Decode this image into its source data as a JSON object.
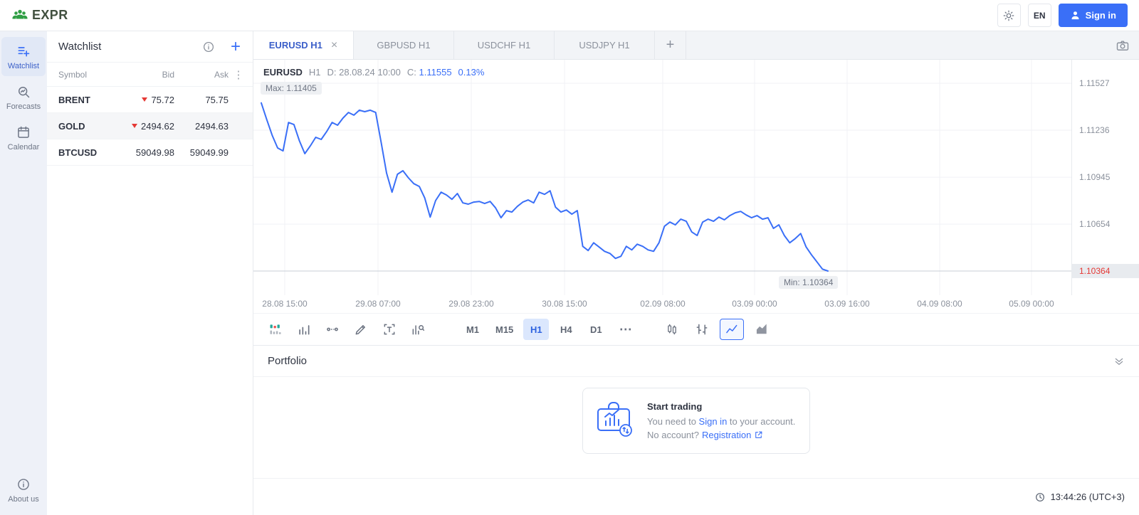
{
  "colors": {
    "accent": "#3A6FF7",
    "red": "#E53935",
    "logo_green": "#2F9E44"
  },
  "glyphs": {
    "close": "×",
    "plus": "+",
    "kebab": "⋮",
    "more": "⋯"
  },
  "header": {
    "logo_text": "EXPR",
    "language": "EN",
    "sign_in": "Sign in"
  },
  "sidebar": {
    "items": [
      {
        "label": "Watchlist",
        "active": true
      },
      {
        "label": "Forecasts",
        "active": false
      },
      {
        "label": "Calendar",
        "active": false
      }
    ],
    "about": "About us"
  },
  "watchlist": {
    "title": "Watchlist",
    "columns": {
      "symbol": "Symbol",
      "bid": "Bid",
      "ask": "Ask"
    },
    "rows": [
      {
        "symbol": "BRENT",
        "bid": "75.72",
        "ask": "75.75",
        "bid_direction": "down",
        "highlighted": false
      },
      {
        "symbol": "GOLD",
        "bid": "2494.62",
        "ask": "2494.63",
        "bid_direction": "down",
        "highlighted": true
      },
      {
        "symbol": "BTCUSD",
        "bid": "59049.98",
        "ask": "59049.99",
        "bid_direction": "none",
        "highlighted": false
      }
    ]
  },
  "tabs": [
    {
      "label": "EURUSD H1",
      "active": true,
      "closable": true
    },
    {
      "label": "GBPUSD H1",
      "active": false
    },
    {
      "label": "USDCHF H1",
      "active": false
    },
    {
      "label": "USDJPY H1",
      "active": false
    }
  ],
  "chart": {
    "symbol": "EURUSD",
    "timeframe": "H1",
    "date": "D: 28.08.24 10:00",
    "close_prefix": "C:",
    "close": "1.11555",
    "change": "0.13%",
    "max_label": "Max: 1.11405",
    "min_label": "Min: 1.10364"
  },
  "chart_data": {
    "type": "line",
    "title": "EURUSD H1",
    "line_color": "#3A6FF7",
    "grid": true,
    "ylim": [
      1.10364,
      1.11527
    ],
    "y_ticks": [
      1.11527,
      1.11236,
      1.10945,
      1.10654,
      1.10364
    ],
    "y_tick_labels": [
      "1.11527",
      "1.11236",
      "1.10945",
      "1.10654",
      "1.10364"
    ],
    "x_tick_labels": [
      "28.08 15:00",
      "29.08 07:00",
      "29.08 23:00",
      "30.08 15:00",
      "02.09 08:00",
      "03.09 00:00",
      "03.09 16:00",
      "04.09 08:00",
      "05.09 00:00"
    ],
    "max": 1.11405,
    "min": 1.10364,
    "last_price": 1.10364,
    "last_price_label": "1.10364",
    "prices": [
      1.11405,
      1.11302,
      1.11205,
      1.11126,
      1.11108,
      1.11284,
      1.11271,
      1.1117,
      1.11091,
      1.11139,
      1.11192,
      1.11179,
      1.11227,
      1.11284,
      1.11267,
      1.11311,
      1.11346,
      1.11329,
      1.1136,
      1.11351,
      1.1136,
      1.11346,
      1.11161,
      1.10971,
      1.10852,
      1.10963,
      1.10985,
      1.10941,
      1.10905,
      1.10888,
      1.10817,
      1.10698,
      1.108,
      1.10852,
      1.10835,
      1.10808,
      1.10844,
      1.10786,
      1.10778,
      1.10791,
      1.10795,
      1.10782,
      1.10795,
      1.10755,
      1.10694,
      1.10738,
      1.10729,
      1.10764,
      1.10791,
      1.10804,
      1.10786,
      1.10852,
      1.10839,
      1.10861,
      1.1076,
      1.10729,
      1.10742,
      1.10716,
      1.10738,
      1.10517,
      1.10491,
      1.10539,
      1.10513,
      1.10486,
      1.10473,
      1.10442,
      1.10455,
      1.10517,
      1.10495,
      1.1053,
      1.10517,
      1.10495,
      1.10486,
      1.10539,
      1.10641,
      1.10667,
      1.1065,
      1.10685,
      1.10672,
      1.10606,
      1.10584,
      1.10667,
      1.10685,
      1.10672,
      1.10698,
      1.10681,
      1.10707,
      1.10725,
      1.10733,
      1.10711,
      1.10694,
      1.10707,
      1.10685,
      1.10694,
      1.10628,
      1.1065,
      1.10584,
      1.10539,
      1.10565,
      1.10596,
      1.10513,
      1.10464,
      1.1042,
      1.10376,
      1.10364
    ]
  },
  "toolbar": {
    "timeframes": [
      "M1",
      "M15",
      "H1",
      "H4",
      "D1"
    ],
    "active_timeframe": "H1",
    "chart_types": [
      "candles",
      "bars",
      "line",
      "area"
    ],
    "active_chart_type": "line"
  },
  "portfolio": {
    "title": "Portfolio",
    "card": {
      "title": "Start trading",
      "line1_prefix": "You need to ",
      "line1_link": "Sign in",
      "line1_suffix": " to your account.",
      "line2_prefix": "No account? ",
      "line2_link": "Registration"
    },
    "time": "13:44:26 (UTC+3)"
  }
}
